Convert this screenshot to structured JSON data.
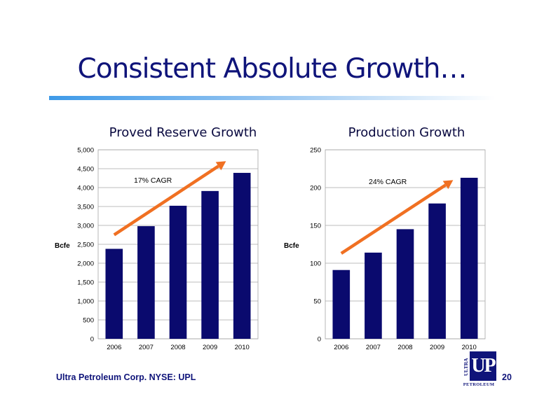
{
  "slide": {
    "title": "Consistent Absolute Growth…",
    "footer_text": "Ultra Petroleum Corp. NYSE: UPL",
    "page_number": "20"
  },
  "logo": {
    "vertical_text": "ULTRA",
    "main_text": "UP",
    "bottom_text": "PETROLEUM",
    "color": "#0f147a"
  },
  "colors": {
    "bar": "#0a0a6e",
    "trend_arrow": "#f07022",
    "gridline": "#a6a6a6",
    "title": "#0f147a"
  },
  "chart_data": [
    {
      "type": "bar",
      "title": "Proved Reserve Growth",
      "ylabel": "Bcfe",
      "xlabel": "",
      "categories": [
        "2006",
        "2007",
        "2008",
        "2009",
        "2010"
      ],
      "values": [
        2380,
        2980,
        3520,
        3910,
        4390
      ],
      "ylim": [
        0,
        5000
      ],
      "yticks": [
        0,
        500,
        1000,
        1500,
        2000,
        2500,
        3000,
        3500,
        4000,
        4500,
        5000
      ],
      "ytick_labels": [
        "0",
        "500",
        "1,000",
        "1,500",
        "2,000",
        "2,500",
        "3,000",
        "3,500",
        "4,000",
        "4,500",
        "5,000"
      ],
      "grid": true,
      "annotation": "17% CAGR",
      "trend_arrow": {
        "from": [
          0,
          2750
        ],
        "to": [
          3.5,
          4700
        ]
      }
    },
    {
      "type": "bar",
      "title": "Production Growth",
      "ylabel": "Bcfe",
      "xlabel": "",
      "categories": [
        "2006",
        "2007",
        "2008",
        "2009",
        "2010"
      ],
      "values": [
        91,
        114,
        145,
        179,
        213
      ],
      "ylim": [
        0,
        250
      ],
      "yticks": [
        0,
        50,
        100,
        150,
        200,
        250
      ],
      "ytick_labels": [
        "0",
        "50",
        "100",
        "150",
        "200",
        "250"
      ],
      "grid": true,
      "annotation": "24% CAGR",
      "trend_arrow": {
        "from": [
          0,
          113
        ],
        "to": [
          3.5,
          210
        ]
      }
    }
  ]
}
